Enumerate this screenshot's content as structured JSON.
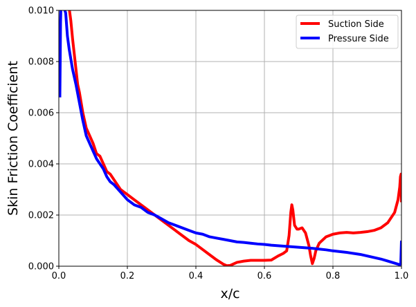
{
  "chart_data": {
    "type": "line",
    "xlabel": "x/c",
    "ylabel": "Skin Friction Coefficient",
    "xlim": [
      0,
      1
    ],
    "ylim": [
      0,
      0.01
    ],
    "grid": true,
    "legend_placement": "upper-right",
    "x_ticks": [
      "0.0",
      "0.2",
      "0.4",
      "0.6",
      "0.8",
      "1.0"
    ],
    "y_ticks": [
      "0.000",
      "0.002",
      "0.004",
      "0.006",
      "0.008",
      "0.010"
    ],
    "x_tick_values": [
      0,
      0.2,
      0.4,
      0.6,
      0.8,
      1.0
    ],
    "y_tick_values": [
      0,
      0.002,
      0.004,
      0.006,
      0.008,
      0.01
    ],
    "series": [
      {
        "name": "Suction Side",
        "color": "#ff0000",
        "x": [
          0.03,
          0.035,
          0.04,
          0.045,
          0.05,
          0.055,
          0.06,
          0.07,
          0.08,
          0.09,
          0.1,
          0.11,
          0.12,
          0.13,
          0.14,
          0.15,
          0.16,
          0.17,
          0.18,
          0.19,
          0.2,
          0.22,
          0.24,
          0.26,
          0.28,
          0.3,
          0.32,
          0.34,
          0.36,
          0.38,
          0.4,
          0.42,
          0.44,
          0.46,
          0.48,
          0.49,
          0.5,
          0.52,
          0.54,
          0.56,
          0.58,
          0.6,
          0.62,
          0.64,
          0.655,
          0.665,
          0.672,
          0.677,
          0.68,
          0.683,
          0.688,
          0.695,
          0.7,
          0.71,
          0.72,
          0.73,
          0.735,
          0.74,
          0.745,
          0.75,
          0.76,
          0.78,
          0.8,
          0.82,
          0.84,
          0.86,
          0.88,
          0.9,
          0.92,
          0.94,
          0.96,
          0.98,
          0.99,
          0.995,
          0.997,
          0.999,
          1.0
        ],
        "y": [
          0.0101,
          0.0096,
          0.0089,
          0.0083,
          0.0077,
          0.0071,
          0.0068,
          0.006,
          0.0054,
          0.0051,
          0.0048,
          0.0044,
          0.0043,
          0.004,
          0.0037,
          0.0036,
          0.0034,
          0.0032,
          0.003,
          0.0029,
          0.0028,
          0.0026,
          0.0024,
          0.0022,
          0.002,
          0.0018,
          0.0016,
          0.0014,
          0.0012,
          0.001,
          0.00085,
          0.00065,
          0.00045,
          0.00025,
          8e-05,
          2e-05,
          3e-05,
          0.00015,
          0.0002,
          0.00023,
          0.00023,
          0.00023,
          0.00024,
          0.0004,
          0.0005,
          0.0006,
          0.0012,
          0.0021,
          0.0024,
          0.0022,
          0.0016,
          0.00145,
          0.00145,
          0.0015,
          0.0013,
          0.0008,
          0.0004,
          0.0001,
          0.0003,
          0.0006,
          0.0009,
          0.00115,
          0.00125,
          0.0013,
          0.00132,
          0.0013,
          0.00132,
          0.00135,
          0.0014,
          0.0015,
          0.0017,
          0.0021,
          0.0026,
          0.0031,
          0.0035,
          0.0036,
          0.0025
        ]
      },
      {
        "name": "Pressure Side",
        "color": "#0000ff",
        "x": [
          0.003,
          0.004,
          0.005,
          0.006,
          0.008,
          0.01,
          0.015,
          0.02,
          0.025,
          0.03,
          0.035,
          0.04,
          0.05,
          0.06,
          0.07,
          0.08,
          0.09,
          0.1,
          0.11,
          0.12,
          0.13,
          0.14,
          0.15,
          0.16,
          0.18,
          0.2,
          0.22,
          0.24,
          0.26,
          0.28,
          0.3,
          0.32,
          0.34,
          0.36,
          0.38,
          0.4,
          0.42,
          0.44,
          0.46,
          0.48,
          0.5,
          0.52,
          0.54,
          0.56,
          0.58,
          0.6,
          0.62,
          0.64,
          0.66,
          0.68,
          0.7,
          0.72,
          0.74,
          0.76,
          0.78,
          0.8,
          0.82,
          0.84,
          0.86,
          0.88,
          0.9,
          0.92,
          0.94,
          0.96,
          0.98,
          0.99,
          0.995,
          0.998,
          1.0
        ],
        "y": [
          0.0066,
          0.008,
          0.0095,
          0.0101,
          0.0101,
          0.0101,
          0.0101,
          0.0099,
          0.009,
          0.0085,
          0.0081,
          0.0077,
          0.0071,
          0.0064,
          0.0057,
          0.0051,
          0.0048,
          0.0045,
          0.0042,
          0.004,
          0.0038,
          0.0035,
          0.0033,
          0.0032,
          0.0029,
          0.0026,
          0.0024,
          0.0023,
          0.0021,
          0.002,
          0.00185,
          0.0017,
          0.0016,
          0.0015,
          0.0014,
          0.0013,
          0.00125,
          0.00115,
          0.0011,
          0.00105,
          0.001,
          0.00095,
          0.00093,
          0.0009,
          0.00087,
          0.00085,
          0.00082,
          0.0008,
          0.00078,
          0.00076,
          0.00074,
          0.00072,
          0.0007,
          0.00067,
          0.00064,
          0.0006,
          0.00057,
          0.00054,
          0.0005,
          0.00046,
          0.0004,
          0.00034,
          0.00028,
          0.0002,
          0.00012,
          8e-05,
          6e-05,
          0.0001,
          0.001
        ]
      }
    ]
  }
}
